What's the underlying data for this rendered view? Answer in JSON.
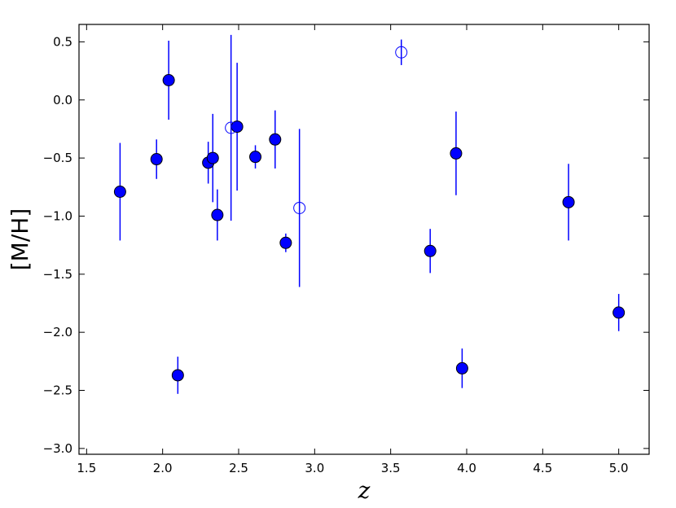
{
  "chart_data": {
    "type": "errorbar-scatter",
    "xlabel": "z",
    "ylabel": "[M/H]",
    "xlim": [
      1.45,
      5.2
    ],
    "ylim": [
      -3.05,
      0.65
    ],
    "xticks": [
      1.5,
      {
        "value": 2,
        "label": "2.0"
      },
      2.5,
      {
        "value": 3,
        "label": "3.0"
      },
      3.5,
      {
        "value": 4,
        "label": "4.0"
      },
      4.5,
      {
        "value": 5,
        "label": "5.0"
      }
    ],
    "yticks": [
      0.5,
      {
        "value": 0,
        "label": "0.0"
      },
      {
        "value": -0.5,
        "label": "−0.5"
      },
      {
        "value": -1,
        "label": "−1.0"
      },
      {
        "value": -1.5,
        "label": "−1.5"
      },
      {
        "value": -2,
        "label": "−2.0"
      },
      {
        "value": -2.5,
        "label": "−2.5"
      },
      {
        "value": -3,
        "label": "−3.0"
      }
    ],
    "series": [
      {
        "color": "#0000ff",
        "marker_fill": "#0000ff",
        "x": [
          1.72,
          1.96,
          2.04,
          2.1,
          2.3,
          2.33,
          2.36,
          2.49,
          2.61,
          2.74,
          2.81,
          3.76,
          3.93,
          3.97,
          4.67,
          5.0
        ],
        "values": [
          -0.79,
          -0.51,
          0.17,
          -2.37,
          -0.54,
          -0.5,
          -0.99,
          -0.23,
          -0.49,
          -0.34,
          -1.23,
          -1.3,
          -0.46,
          -2.31,
          -0.88,
          -1.83
        ],
        "errors": [
          0.42,
          0.17,
          0.34,
          0.16,
          0.18,
          0.38,
          0.22,
          0.55,
          0.1,
          0.25,
          0.08,
          0.19,
          0.36,
          0.17,
          0.33,
          0.16
        ]
      },
      {
        "color": "#0000ff",
        "marker_fill": "none",
        "x": [
          2.45,
          2.9,
          3.57
        ],
        "values": [
          -0.24,
          -0.93,
          0.41
        ],
        "errors": [
          0.8,
          0.68,
          0.11
        ]
      }
    ]
  }
}
